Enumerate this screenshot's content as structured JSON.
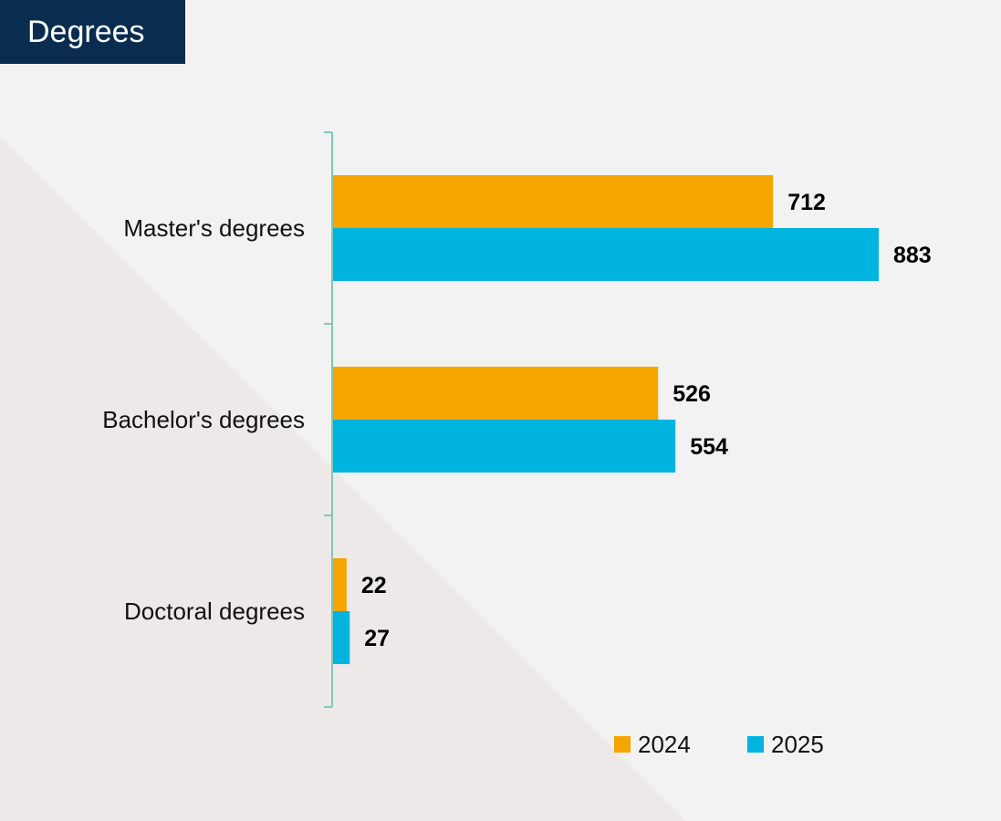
{
  "colors": {
    "background": "#f2f2f3",
    "triangle": "#ede9e9",
    "banner": "#0a2d4f",
    "axis": "#7fc7b7"
  },
  "chart_data": {
    "type": "bar",
    "orientation": "horizontal",
    "title": "Degrees",
    "categories": [
      "Master's degrees",
      "Bachelor's degrees",
      "Doctoral degrees"
    ],
    "series": [
      {
        "name": "2024",
        "color": "#f5a500",
        "values": [
          712,
          526,
          22
        ]
      },
      {
        "name": "2025",
        "color": "#00b4e0",
        "values": [
          883,
          554,
          27
        ]
      }
    ],
    "data_labels": true,
    "grid": false,
    "legend": "bottom-right"
  }
}
